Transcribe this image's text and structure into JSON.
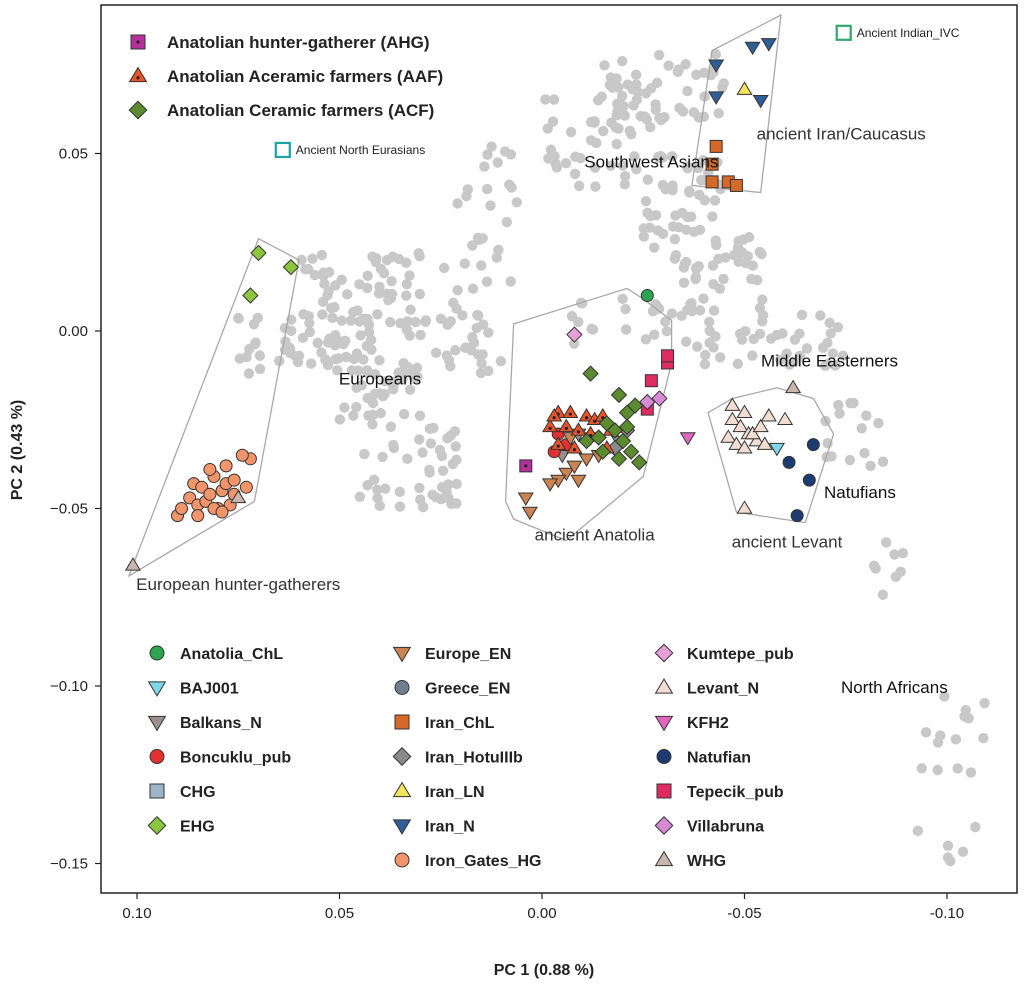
{
  "chart_data": {
    "type": "scatter",
    "xlabel": "PC 1 (0.88 %)",
    "ylabel": "PC 2 (0.43 %)",
    "x_reversed": true,
    "xlim": [
      0.108,
      -0.112
    ],
    "ylim": [
      -0.158,
      0.092
    ],
    "x_ticks": [
      {
        "v": 0.1,
        "label": "0.10"
      },
      {
        "v": 0.05,
        "label": "0.05"
      },
      {
        "v": 0.0,
        "label": "0.00"
      },
      {
        "v": -0.05,
        "label": "-0.05"
      },
      {
        "v": -0.1,
        "label": "-0.10"
      }
    ],
    "y_ticks": [
      {
        "v": 0.05,
        "label": "0.05"
      },
      {
        "v": 0.0,
        "label": "0.00"
      },
      {
        "v": -0.05,
        "label": "−0.05"
      },
      {
        "v": -0.1,
        "label": "−0.10"
      },
      {
        "v": -0.15,
        "label": "−0.15"
      }
    ],
    "grid": false,
    "top_legend": [
      {
        "label": "Anatolian hunter-gatherer (AHG)",
        "shape": "square-dot",
        "color": "#b5309b"
      },
      {
        "label": "Anatolian Aceramic farmers (AAF)",
        "shape": "triangle-dot",
        "color": "#e8542a"
      },
      {
        "label": "Anatolian Ceramic farmers (ACF)",
        "shape": "diamond",
        "color": "#5b8a2f"
      }
    ],
    "open_markers": [
      {
        "label": "Ancient North Eurasians",
        "color": "#1ba3a6",
        "x": 0.064,
        "y": 0.051
      },
      {
        "label": "Ancient Indian_IVC",
        "color": "#2fa86b",
        "x": -0.0745,
        "y": 0.084
      }
    ],
    "region_labels": [
      {
        "text": "Southwest Asians",
        "x": -0.027,
        "y": 0.046,
        "anchor": "middle"
      },
      {
        "text": "ancient Iran/Caucasus",
        "x": -0.053,
        "y": 0.054,
        "anchor": "start"
      },
      {
        "text": "Europeans",
        "x": 0.04,
        "y": -0.015,
        "anchor": "middle"
      },
      {
        "text": "Middle Easterners",
        "x": -0.071,
        "y": -0.01,
        "anchor": "middle"
      },
      {
        "text": "ancient Anatolia",
        "x": -0.013,
        "y": -0.059,
        "anchor": "middle"
      },
      {
        "text": "Natufians",
        "x": -0.0785,
        "y": -0.047,
        "anchor": "middle"
      },
      {
        "text": "ancient Levant",
        "x": -0.0605,
        "y": -0.061,
        "anchor": "middle"
      },
      {
        "text": "European hunter-gatherers",
        "x": 0.075,
        "y": -0.073,
        "anchor": "middle"
      },
      {
        "text": "North Africans",
        "x": -0.087,
        "y": -0.102,
        "anchor": "middle"
      }
    ],
    "hulls": [
      {
        "name": "European hunter-gatherers",
        "points": [
          [
            0.102,
            -0.069
          ],
          [
            0.07,
            0.026
          ],
          [
            0.06,
            0.02
          ],
          [
            0.071,
            -0.048
          ]
        ]
      },
      {
        "name": "ancient Anatolia",
        "points": [
          [
            0.007,
            -0.053
          ],
          [
            -0.006,
            -0.059
          ],
          [
            -0.025,
            -0.041
          ],
          [
            -0.032,
            -0.009
          ],
          [
            -0.032,
            0.003
          ],
          [
            -0.025,
            0.009
          ],
          [
            -0.021,
            0.012
          ],
          [
            0.007,
            0.002
          ],
          [
            0.009,
            -0.048
          ]
        ]
      },
      {
        "name": "ancient Iran/Caucasus",
        "points": [
          [
            -0.037,
            0.041
          ],
          [
            -0.042,
            0.079
          ],
          [
            -0.059,
            0.089
          ],
          [
            -0.054,
            0.039
          ]
        ]
      },
      {
        "name": "ancient Levant",
        "points": [
          [
            -0.041,
            -0.023
          ],
          [
            -0.048,
            -0.051
          ],
          [
            -0.065,
            -0.054
          ],
          [
            -0.072,
            -0.029
          ],
          [
            -0.067,
            -0.019
          ],
          [
            -0.058,
            -0.016
          ],
          [
            -0.047,
            -0.019
          ]
        ]
      }
    ],
    "series": [
      {
        "name": "Anatolia_ChL",
        "shape": "circle",
        "color": "#2ea44f",
        "points": [
          [
            -0.026,
            0.01
          ]
        ]
      },
      {
        "name": "BAJ001",
        "shape": "tri-down",
        "color": "#7fd7e8",
        "points": [
          [
            -0.058,
            -0.033
          ]
        ]
      },
      {
        "name": "Balkans_N",
        "shape": "tri-down",
        "color": "#9a8f8c",
        "points": [
          [
            -0.009,
            -0.029
          ],
          [
            -0.012,
            -0.03
          ],
          [
            -0.005,
            -0.035
          ],
          [
            -0.019,
            -0.031
          ]
        ]
      },
      {
        "name": "Boncuklu_pub",
        "shape": "circle",
        "color": "#e23131",
        "points": [
          [
            -0.004,
            -0.029
          ],
          [
            -0.006,
            -0.032
          ],
          [
            -0.003,
            -0.034
          ]
        ]
      },
      {
        "name": "CHG",
        "shape": "square",
        "color": "#9db4c8",
        "points": []
      },
      {
        "name": "EHG",
        "shape": "diamond",
        "color": "#8cc63f",
        "points": [
          [
            0.07,
            0.022
          ],
          [
            0.062,
            0.018
          ],
          [
            0.072,
            0.01
          ]
        ]
      },
      {
        "name": "Europe_EN",
        "shape": "tri-down",
        "color": "#c98452",
        "points": [
          [
            0.004,
            -0.047
          ],
          [
            0.003,
            -0.051
          ],
          [
            -0.006,
            -0.04
          ],
          [
            -0.004,
            -0.042
          ],
          [
            -0.008,
            -0.038
          ],
          [
            -0.011,
            -0.036
          ],
          [
            -0.014,
            -0.035
          ],
          [
            -0.002,
            -0.043
          ],
          [
            -0.009,
            -0.042
          ],
          [
            -0.007,
            -0.03
          ]
        ]
      },
      {
        "name": "Greece_EN",
        "shape": "circle",
        "color": "#6f7f8f",
        "points": []
      },
      {
        "name": "Iran_ChL",
        "shape": "square",
        "color": "#d4692a",
        "points": [
          [
            -0.042,
            0.042
          ],
          [
            -0.042,
            0.047
          ],
          [
            -0.043,
            0.052
          ],
          [
            -0.046,
            0.042
          ],
          [
            -0.048,
            0.041
          ]
        ]
      },
      {
        "name": "Iran_HotuIIIb",
        "shape": "diamond",
        "color": "#8a8a8a",
        "points": [
          [
            -0.018,
            -0.033
          ],
          [
            -0.021,
            -0.028
          ]
        ]
      },
      {
        "name": "Iran_LN",
        "shape": "tri-up",
        "color": "#f2e45c",
        "points": [
          [
            -0.05,
            0.068
          ]
        ]
      },
      {
        "name": "Iran_N",
        "shape": "tri-down",
        "color": "#2f5f96",
        "points": [
          [
            -0.043,
            0.075
          ],
          [
            -0.043,
            0.066
          ],
          [
            -0.052,
            0.08
          ],
          [
            -0.056,
            0.081
          ],
          [
            -0.054,
            0.065
          ]
        ]
      },
      {
        "name": "Iron_Gates_HG",
        "shape": "circle",
        "color": "#f2956a",
        "points": [
          [
            0.087,
            -0.047
          ],
          [
            0.086,
            -0.043
          ],
          [
            0.085,
            -0.049
          ],
          [
            0.084,
            -0.044
          ],
          [
            0.083,
            -0.048
          ],
          [
            0.082,
            -0.046
          ],
          [
            0.081,
            -0.041
          ],
          [
            0.08,
            -0.05
          ],
          [
            0.079,
            -0.045
          ],
          [
            0.078,
            -0.043
          ],
          [
            0.077,
            -0.049
          ],
          [
            0.076,
            -0.046
          ],
          [
            0.082,
            -0.039
          ],
          [
            0.078,
            -0.038
          ],
          [
            0.076,
            -0.042
          ],
          [
            0.073,
            -0.044
          ],
          [
            0.072,
            -0.036
          ],
          [
            0.074,
            -0.035
          ],
          [
            0.09,
            -0.052
          ],
          [
            0.089,
            -0.05
          ],
          [
            0.085,
            -0.052
          ],
          [
            0.081,
            -0.05
          ],
          [
            0.079,
            -0.051
          ]
        ]
      },
      {
        "name": "Kumtepe_pub",
        "shape": "diamond",
        "color": "#e5a0d5",
        "points": [
          [
            -0.008,
            -0.001
          ]
        ]
      },
      {
        "name": "Levant_N",
        "shape": "tri-up",
        "color": "#f2ddd2",
        "points": [
          [
            -0.047,
            -0.021
          ],
          [
            -0.05,
            -0.023
          ],
          [
            -0.047,
            -0.025
          ],
          [
            -0.049,
            -0.027
          ],
          [
            -0.051,
            -0.029
          ],
          [
            -0.046,
            -0.03
          ],
          [
            -0.048,
            -0.032
          ],
          [
            -0.05,
            -0.033
          ],
          [
            -0.053,
            -0.031
          ],
          [
            -0.055,
            -0.032
          ],
          [
            -0.052,
            -0.029
          ],
          [
            -0.054,
            -0.027
          ],
          [
            -0.056,
            -0.024
          ],
          [
            -0.06,
            -0.025
          ],
          [
            -0.05,
            -0.05
          ]
        ]
      },
      {
        "name": "KFH2",
        "shape": "tri-down",
        "color": "#e066c0",
        "points": [
          [
            -0.036,
            -0.03
          ]
        ]
      },
      {
        "name": "Natufian",
        "shape": "circle",
        "color": "#1f3c72",
        "points": [
          [
            -0.067,
            -0.032
          ],
          [
            -0.061,
            -0.037
          ],
          [
            -0.066,
            -0.042
          ],
          [
            -0.063,
            -0.052
          ]
        ]
      },
      {
        "name": "Tepecik_pub",
        "shape": "square",
        "color": "#e02b62",
        "points": [
          [
            -0.031,
            -0.009
          ],
          [
            -0.031,
            -0.007
          ],
          [
            -0.027,
            -0.014
          ],
          [
            -0.026,
            -0.022
          ]
        ]
      },
      {
        "name": "Villabruna",
        "shape": "diamond",
        "color": "#d98ad6",
        "points": [
          [
            -0.029,
            -0.019
          ],
          [
            -0.026,
            -0.02
          ]
        ]
      },
      {
        "name": "WHG",
        "shape": "tri-up",
        "color": "#c8b7ac",
        "points": [
          [
            0.101,
            -0.066
          ],
          [
            0.075,
            -0.047
          ],
          [
            -0.062,
            -0.016
          ]
        ]
      },
      {
        "name": "Anatolian hunter-gatherer (AHG)",
        "shape": "square-dot",
        "color": "#b5309b",
        "points": [
          [
            0.004,
            -0.038
          ]
        ]
      },
      {
        "name": "Anatolian Aceramic farmers (AAF)",
        "shape": "triangle-dot",
        "color": "#e8542a",
        "points": [
          [
            -0.004,
            -0.023
          ],
          [
            -0.007,
            -0.023
          ],
          [
            -0.011,
            -0.024
          ],
          [
            -0.013,
            -0.025
          ],
          [
            -0.015,
            -0.024
          ],
          [
            -0.006,
            -0.027
          ],
          [
            -0.009,
            -0.028
          ],
          [
            -0.012,
            -0.029
          ],
          [
            -0.004,
            -0.032
          ],
          [
            -0.008,
            -0.033
          ],
          [
            -0.016,
            -0.033
          ],
          [
            -0.002,
            -0.027
          ],
          [
            -0.003,
            -0.024
          ],
          [
            -0.017,
            -0.028
          ]
        ]
      },
      {
        "name": "Anatolian Ceramic farmers (ACF)",
        "shape": "diamond",
        "color": "#5b8a2f",
        "points": [
          [
            -0.012,
            -0.012
          ],
          [
            -0.019,
            -0.018
          ],
          [
            -0.021,
            -0.023
          ],
          [
            -0.023,
            -0.021
          ],
          [
            -0.016,
            -0.026
          ],
          [
            -0.018,
            -0.028
          ],
          [
            -0.02,
            -0.031
          ],
          [
            -0.022,
            -0.034
          ],
          [
            -0.024,
            -0.037
          ],
          [
            -0.014,
            -0.03
          ],
          [
            -0.011,
            -0.031
          ],
          [
            -0.019,
            -0.036
          ],
          [
            -0.015,
            -0.034
          ],
          [
            -0.021,
            -0.027
          ]
        ]
      }
    ],
    "background_clusters": [
      {
        "x": [
          0.075,
          0.04
        ],
        "y": [
          -0.012,
          0.005
        ],
        "n": 60
      },
      {
        "x": [
          0.06,
          0.03
        ],
        "y": [
          0.002,
          0.022
        ],
        "n": 55
      },
      {
        "x": [
          0.05,
          0.03
        ],
        "y": [
          -0.025,
          -0.01
        ],
        "n": 35
      },
      {
        "x": [
          0.045,
          0.02
        ],
        "y": [
          -0.05,
          -0.025
        ],
        "n": 45
      },
      {
        "x": [
          0.035,
          0.01
        ],
        "y": [
          -0.012,
          0.005
        ],
        "n": 35
      },
      {
        "x": [
          0.025,
          0.005
        ],
        "y": [
          0.005,
          0.06
        ],
        "n": 30
      },
      {
        "x": [
          0.0,
          -0.03
        ],
        "y": [
          0.04,
          0.07
        ],
        "n": 55
      },
      {
        "x": [
          -0.015,
          -0.045
        ],
        "y": [
          0.06,
          0.078
        ],
        "n": 40
      },
      {
        "x": [
          -0.025,
          -0.045
        ],
        "y": [
          0.02,
          0.05
        ],
        "n": 45
      },
      {
        "x": [
          -0.035,
          -0.055
        ],
        "y": [
          0.005,
          0.03
        ],
        "n": 40
      },
      {
        "x": [
          -0.04,
          -0.075
        ],
        "y": [
          -0.01,
          0.005
        ],
        "n": 40
      },
      {
        "x": [
          -0.005,
          -0.04
        ],
        "y": [
          -0.005,
          0.01
        ],
        "n": 25
      },
      {
        "x": [
          -0.07,
          -0.085
        ],
        "y": [
          -0.04,
          -0.02
        ],
        "n": 15
      },
      {
        "x": [
          -0.082,
          -0.09
        ],
        "y": [
          -0.075,
          -0.058
        ],
        "n": 8
      },
      {
        "x": [
          -0.092,
          -0.11
        ],
        "y": [
          -0.15,
          -0.1
        ],
        "n": 20
      }
    ],
    "bottom_legend": [
      [
        {
          "label": "Anatolia_ChL",
          "shape": "circle",
          "color": "#2ea44f"
        },
        {
          "label": "BAJ001",
          "shape": "tri-down",
          "color": "#7fd7e8"
        },
        {
          "label": "Balkans_N",
          "shape": "tri-down",
          "color": "#9a8f8c"
        },
        {
          "label": "Boncuklu_pub",
          "shape": "circle",
          "color": "#e23131"
        },
        {
          "label": "CHG",
          "shape": "square",
          "color": "#9db4c8"
        },
        {
          "label": "EHG",
          "shape": "diamond",
          "color": "#8cc63f"
        }
      ],
      [
        {
          "label": "Europe_EN",
          "shape": "tri-down",
          "color": "#c98452"
        },
        {
          "label": "Greece_EN",
          "shape": "circle",
          "color": "#6f7f8f"
        },
        {
          "label": "Iran_ChL",
          "shape": "square",
          "color": "#d4692a"
        },
        {
          "label": "Iran_HotuIIIb",
          "shape": "diamond",
          "color": "#8a8a8a"
        },
        {
          "label": "Iran_LN",
          "shape": "tri-up",
          "color": "#f2e45c"
        },
        {
          "label": "Iran_N",
          "shape": "tri-down",
          "color": "#2f5f96"
        },
        {
          "label": "Iron_Gates_HG",
          "shape": "circle",
          "color": "#f2956a"
        }
      ],
      [
        {
          "label": "Kumtepe_pub",
          "shape": "diamond",
          "color": "#e5a0d5"
        },
        {
          "label": "Levant_N",
          "shape": "tri-up",
          "color": "#f2ddd2"
        },
        {
          "label": "KFH2",
          "shape": "tri-down",
          "color": "#e066c0"
        },
        {
          "label": "Natufian",
          "shape": "circle",
          "color": "#1f3c72"
        },
        {
          "label": "Tepecik_pub",
          "shape": "square",
          "color": "#e02b62"
        },
        {
          "label": "Villabruna",
          "shape": "diamond",
          "color": "#d98ad6"
        },
        {
          "label": "WHG",
          "shape": "tri-up",
          "color": "#c8b7ac"
        }
      ]
    ]
  },
  "colors": {
    "background_points": "#c8c8c8",
    "hull_stroke": "#a8a8a8",
    "marker_stroke": "#333333"
  }
}
